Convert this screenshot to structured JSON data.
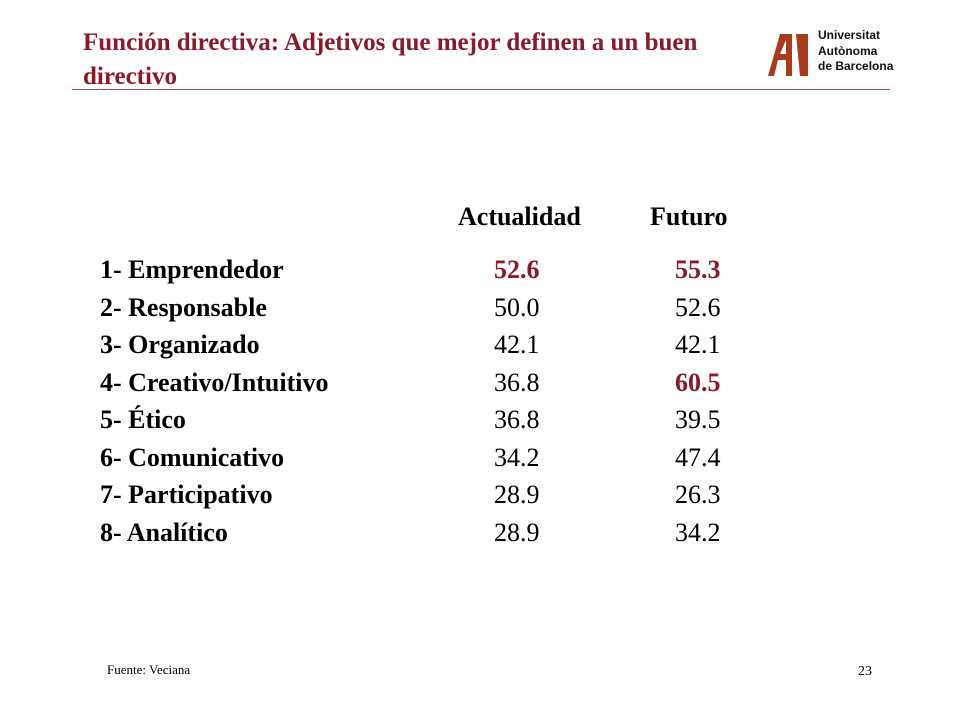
{
  "slide": {
    "title": "Función directiva: Adjetivos que mejor definen a un buen directivo",
    "accent_color": "#8b1a2b",
    "logo": {
      "icon": "uab-logo-icon",
      "lines": [
        "Universitat",
        "Autònoma",
        "de Barcelona"
      ]
    },
    "table": {
      "columns": [
        "Actualidad",
        "Futuro"
      ],
      "rows": [
        {
          "label": "1- Emprendedor",
          "actualidad": "52.6",
          "futuro": "55.3",
          "highlight_actualidad": true,
          "highlight_futuro": true
        },
        {
          "label": "2- Responsable",
          "actualidad": "50.0",
          "futuro": "52.6",
          "highlight_actualidad": false,
          "highlight_futuro": false
        },
        {
          "label": "3- Organizado",
          "actualidad": "42.1",
          "futuro": "42.1",
          "highlight_actualidad": false,
          "highlight_futuro": false
        },
        {
          "label": "4- Creativo/Intuitivo",
          "actualidad": "36.8",
          "futuro": "60.5",
          "highlight_actualidad": false,
          "highlight_futuro": true
        },
        {
          "label": "5- Ético",
          "actualidad": "36.8",
          "futuro": "39.5",
          "highlight_actualidad": false,
          "highlight_futuro": false
        },
        {
          "label": "6- Comunicativo",
          "actualidad": "34.2",
          "futuro": "47.4",
          "highlight_actualidad": false,
          "highlight_futuro": false
        },
        {
          "label": "7- Participativo",
          "actualidad": "28.9",
          "futuro": "26.3",
          "highlight_actualidad": false,
          "highlight_futuro": false
        },
        {
          "label": "8- Analítico",
          "actualidad": "28.9",
          "futuro": "34.2",
          "highlight_actualidad": false,
          "highlight_futuro": false
        }
      ]
    },
    "source": "Fuente: Veciana",
    "page_number": "23"
  }
}
